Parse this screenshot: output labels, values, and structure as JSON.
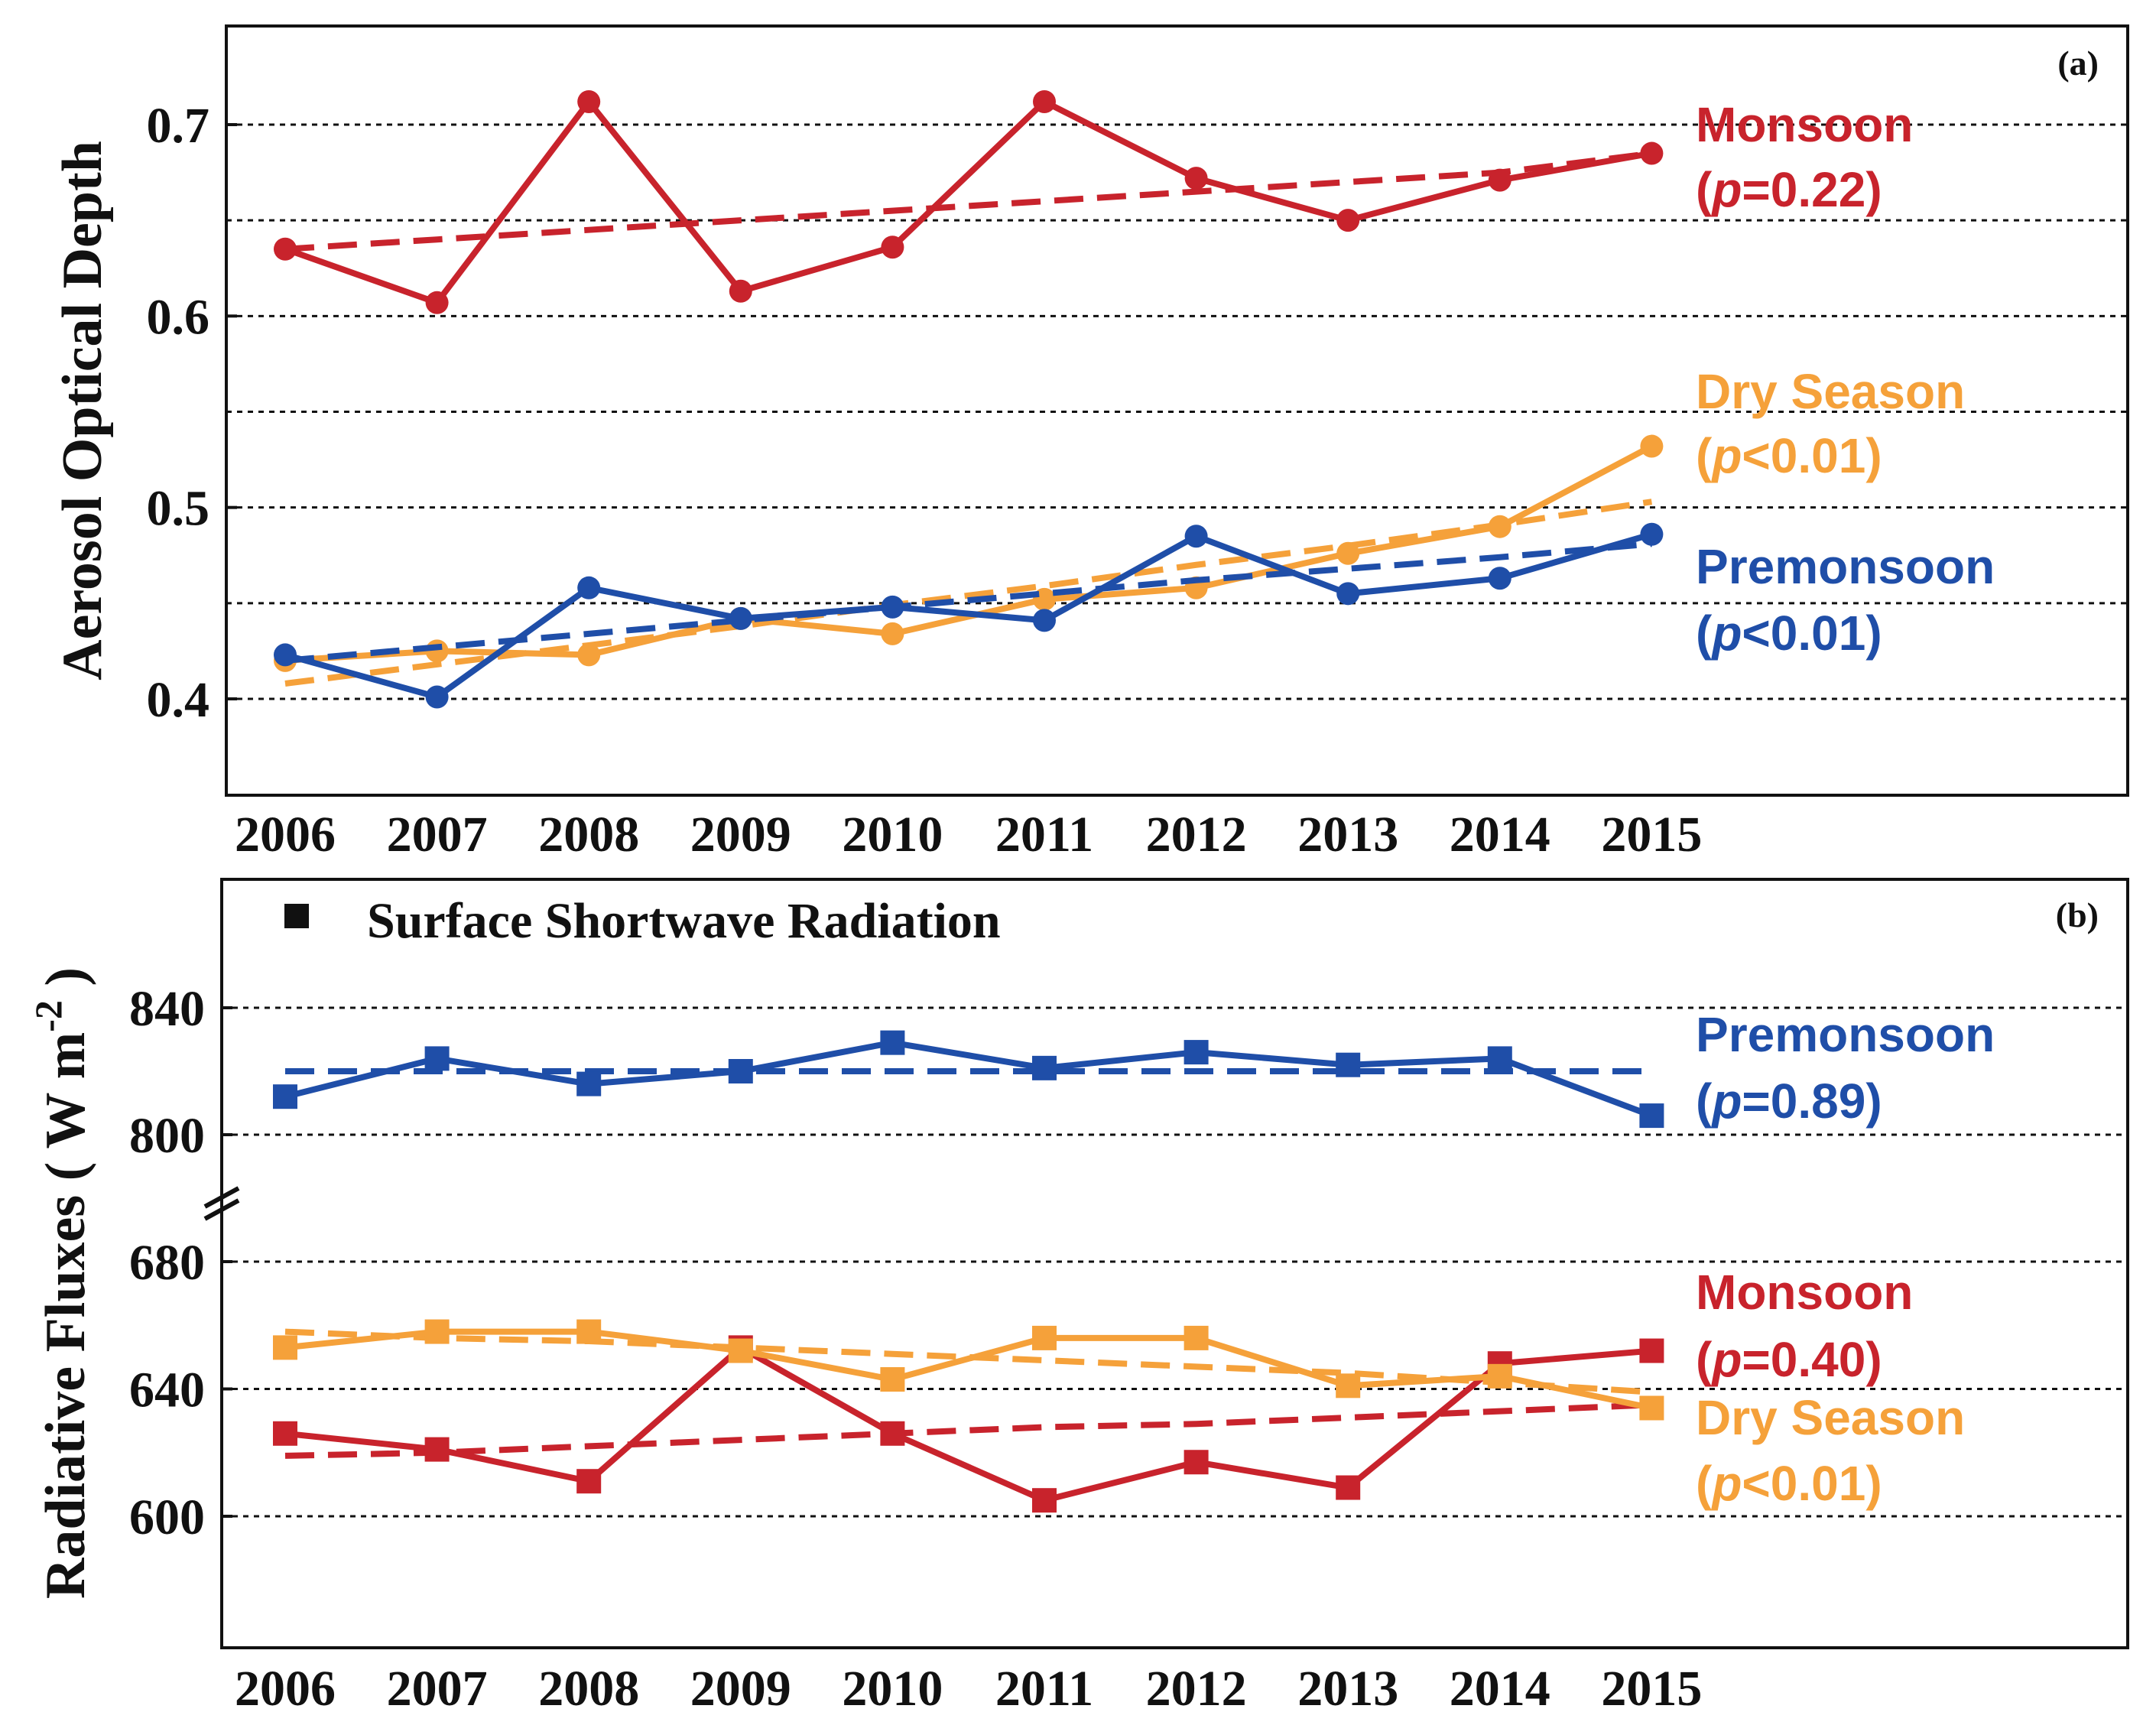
{
  "chart_data": [
    {
      "type": "line",
      "panel_label": "(a)",
      "ylabel": "Aerosol Optical Depth",
      "xlabel": "",
      "ylim": [
        0.35,
        0.75
      ],
      "yticks": [
        0.4,
        0.5,
        0.6,
        0.7
      ],
      "ytick_labels": [
        "0.4",
        "0.5",
        "0.6",
        "0.7"
      ],
      "gridlines": [
        0.4,
        0.45,
        0.5,
        0.55,
        0.6,
        0.65,
        0.7
      ],
      "categories": [
        "2006",
        "2007",
        "2008",
        "2009",
        "2010",
        "2011",
        "2012",
        "2013",
        "2014",
        "2015"
      ],
      "marker": "circle",
      "series": [
        {
          "key": "monsoon",
          "name": "Monsoon",
          "p_prefix": "(",
          "p_symbol": "p",
          "p_rest": "=0.22)",
          "color": "#c8232c",
          "values": [
            0.635,
            0.607,
            0.712,
            0.613,
            0.636,
            0.712,
            0.672,
            0.65,
            0.671,
            0.685
          ],
          "trend": [
            0.635,
            0.64,
            0.645,
            0.65,
            0.655,
            0.66,
            0.665,
            0.67,
            0.675,
            0.685
          ]
        },
        {
          "key": "dry",
          "name": "Dry Season",
          "p_prefix": "(",
          "p_symbol": "p",
          "p_rest": "<0.01)",
          "color": "#f5a13a",
          "values": [
            0.42,
            0.425,
            0.423,
            0.442,
            0.434,
            0.452,
            0.458,
            0.476,
            0.49,
            0.532
          ],
          "trend": [
            0.408,
            0.418,
            0.428,
            0.438,
            0.449,
            0.459,
            0.47,
            0.48,
            0.491,
            0.503
          ]
        },
        {
          "key": "premonsoon",
          "name": "Premonsoon",
          "p_prefix": "(",
          "p_symbol": "p",
          "p_rest": "<0.01)",
          "color": "#1f4ea8",
          "values": [
            0.423,
            0.401,
            0.458,
            0.442,
            0.448,
            0.441,
            0.485,
            0.455,
            0.463,
            0.486
          ],
          "trend": [
            0.42,
            0.427,
            0.434,
            0.441,
            0.448,
            0.455,
            0.462,
            0.468,
            0.474,
            0.481
          ]
        }
      ]
    },
    {
      "type": "line",
      "panel_label": "(b)",
      "legend_text": "Surface Shortwave Radiation",
      "ylabel_main": "Radiative Fluxes ( W m",
      "ylabel_sup": "-2",
      "ylabel_end": " )",
      "xlabel": "",
      "axis_break": "between 680 and 800",
      "yticks": [
        600,
        640,
        680,
        800,
        840
      ],
      "ytick_labels": [
        "600",
        "640",
        "680",
        "800",
        "840"
      ],
      "gridlines": [
        600,
        640,
        680,
        800,
        840
      ],
      "categories": [
        "2006",
        "2007",
        "2008",
        "2009",
        "2010",
        "2011",
        "2012",
        "2013",
        "2014",
        "2015"
      ],
      "marker": "square",
      "series": [
        {
          "key": "premonsoon",
          "name": "Premonsoon",
          "p_prefix": "(",
          "p_symbol": "p",
          "p_rest": "=0.89)",
          "color": "#1f4ea8",
          "values": [
            812,
            824,
            816,
            820,
            829,
            821,
            826,
            822,
            824,
            806
          ],
          "trend": [
            820,
            820,
            820,
            820,
            820,
            820,
            820,
            820,
            820,
            820
          ]
        },
        {
          "key": "monsoon",
          "name": "Monsoon",
          "p_prefix": "(",
          "p_symbol": "p",
          "p_rest": "=0.40)",
          "color": "#c8232c",
          "values": [
            626,
            621,
            611,
            653,
            626,
            605,
            617,
            609,
            648,
            652
          ],
          "trend": [
            619,
            620,
            622,
            624,
            626,
            628,
            629,
            631,
            633,
            635
          ]
        },
        {
          "key": "dry",
          "name": "Dry Season",
          "p_prefix": "(",
          "p_symbol": "p",
          "p_rest": "<0.01)",
          "color": "#f5a13a",
          "values": [
            653,
            658,
            658,
            652,
            643,
            656,
            656,
            641,
            644,
            634
          ],
          "trend": [
            658,
            656,
            655,
            653,
            651,
            649,
            647,
            645,
            642,
            639
          ]
        }
      ]
    }
  ]
}
